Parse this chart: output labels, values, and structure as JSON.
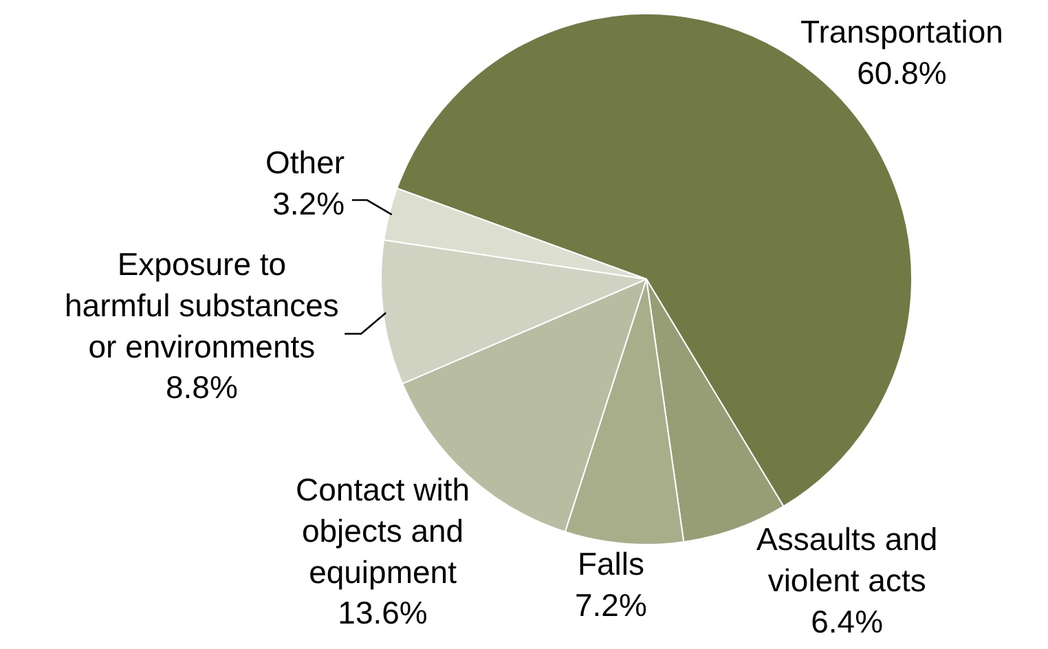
{
  "chart_data": {
    "type": "pie",
    "categories": [
      "Transportation",
      "Assaults and violent acts",
      "Falls",
      "Contact with objects and equipment",
      "Exposure to harmful substances or environments",
      "Other"
    ],
    "values": [
      60.8,
      6.4,
      7.2,
      13.6,
      8.8,
      3.2
    ],
    "value_labels": [
      "60.8%",
      "6.4%",
      "7.2%",
      "13.6%",
      "8.8%",
      "3.2%"
    ],
    "colors": [
      "#717a45",
      "#979d74",
      "#a9ae8a",
      "#b8bca0",
      "#d0d3c2",
      "#dcdecf"
    ],
    "legend": false
  }
}
